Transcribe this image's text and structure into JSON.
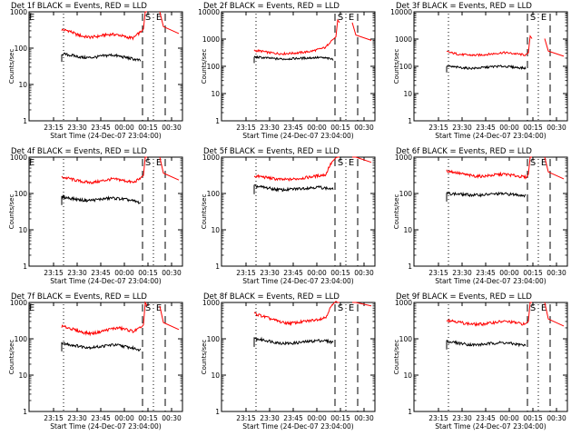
{
  "colors": {
    "background": "#ffffff",
    "events": "#000000",
    "lld": "#ff0000",
    "markers": "#000000"
  },
  "chart_data": [
    {
      "type": "line",
      "title": "Det 1f BLACK = Events, RED = LLD",
      "xlabel": "Start Time (24-Dec-07 23:04:00)",
      "ylabel": "Counts/sec",
      "yscale": "log",
      "ylim": [
        1,
        1000
      ],
      "xtick_labels": [
        "23:15",
        "23:30",
        "23:45",
        "00:00",
        "00:15",
        "00:30"
      ],
      "ytick_labels": [
        "1",
        "10",
        "100",
        "1000"
      ],
      "annotations": [
        "E",
        "S",
        "E"
      ],
      "grid": false,
      "series": [
        {
          "color": "#ff0000",
          "values": [
            320,
            300,
            240,
            210,
            200,
            210,
            230,
            240,
            230,
            200,
            190,
            280
          ]
        },
        {
          "color": "#000000",
          "values": [
            70,
            65,
            60,
            55,
            55,
            58,
            62,
            65,
            60,
            55,
            50,
            45
          ]
        }
      ]
    },
    {
      "type": "line",
      "title": "Det 2f BLACK = Events, RED = LLD",
      "xlabel": "Start Time (24-Dec-07 23:04:00)",
      "ylabel": "Counts/sec",
      "yscale": "log",
      "ylim": [
        1,
        10000
      ],
      "xtick_labels": [
        "23:15",
        "23:30",
        "23:45",
        "00:00",
        "00:15",
        "00:30"
      ],
      "ytick_labels": [
        "1",
        "10",
        "100",
        "1000",
        "10000"
      ],
      "annotations": [
        "S",
        "E"
      ],
      "grid": false,
      "series": [
        {
          "color": "#ff0000",
          "values": [
            380,
            360,
            320,
            300,
            290,
            300,
            310,
            330,
            360,
            420,
            500,
            1000
          ]
        },
        {
          "color": "#000000",
          "values": [
            220,
            210,
            200,
            190,
            185,
            190,
            195,
            200,
            205,
            210,
            200,
            180
          ]
        }
      ]
    },
    {
      "type": "line",
      "title": "Det 3f BLACK = Events, RED = LLD",
      "xlabel": "Start Time (24-Dec-07 23:04:00)",
      "ylabel": "Counts/sec",
      "yscale": "log",
      "ylim": [
        1,
        10000
      ],
      "xtick_labels": [
        "23:15",
        "23:30",
        "23:45",
        "00:00",
        "00:15",
        "00:30"
      ],
      "ytick_labels": [
        "1",
        "10",
        "100",
        "1000",
        "10000"
      ],
      "annotations": [
        "S",
        "E"
      ],
      "grid": false,
      "series": [
        {
          "color": "#ff0000",
          "values": [
            340,
            300,
            270,
            260,
            255,
            265,
            280,
            300,
            320,
            300,
            280,
            260
          ]
        },
        {
          "color": "#000000",
          "values": [
            100,
            95,
            90,
            85,
            85,
            90,
            95,
            100,
            100,
            95,
            90,
            85
          ]
        }
      ]
    },
    {
      "type": "line",
      "title": "Det 4f BLACK = Events, RED = LLD",
      "xlabel": "Start Time (24-Dec-07 23:04:00)",
      "ylabel": "Counts/sec",
      "yscale": "log",
      "ylim": [
        1,
        1000
      ],
      "xtick_labels": [
        "23:15",
        "23:30",
        "23:45",
        "00:00",
        "00:15",
        "00:30"
      ],
      "ytick_labels": [
        "1",
        "10",
        "100",
        "1000"
      ],
      "annotations": [
        "E",
        "S",
        "E"
      ],
      "grid": false,
      "series": [
        {
          "color": "#ff0000",
          "values": [
            280,
            260,
            230,
            210,
            200,
            210,
            230,
            250,
            240,
            220,
            200,
            260
          ]
        },
        {
          "color": "#000000",
          "values": [
            80,
            75,
            70,
            65,
            65,
            68,
            72,
            75,
            72,
            68,
            62,
            55
          ]
        }
      ]
    },
    {
      "type": "line",
      "title": "Det 5f BLACK = Events, RED = LLD",
      "xlabel": "Start Time (24-Dec-07 23:04:00)",
      "ylabel": "Counts/sec",
      "yscale": "log",
      "ylim": [
        1,
        1000
      ],
      "xtick_labels": [
        "23:15",
        "23:30",
        "23:45",
        "00:00",
        "00:15",
        "00:30"
      ],
      "ytick_labels": [
        "1",
        "10",
        "100",
        "1000"
      ],
      "annotations": [
        "S",
        "E"
      ],
      "grid": false,
      "series": [
        {
          "color": "#ff0000",
          "values": [
            300,
            290,
            270,
            250,
            240,
            245,
            255,
            270,
            290,
            310,
            330,
            800
          ]
        },
        {
          "color": "#000000",
          "values": [
            160,
            150,
            140,
            130,
            125,
            130,
            135,
            140,
            145,
            150,
            140,
            130
          ]
        }
      ]
    },
    {
      "type": "line",
      "title": "Det 6f BLACK = Events, RED = LLD",
      "xlabel": "Start Time (24-Dec-07 23:04:00)",
      "ylabel": "Counts/sec",
      "yscale": "log",
      "ylim": [
        1,
        1000
      ],
      "xtick_labels": [
        "23:15",
        "23:30",
        "23:45",
        "00:00",
        "00:15",
        "00:30"
      ],
      "ytick_labels": [
        "1",
        "10",
        "100",
        "1000"
      ],
      "annotations": [
        "S",
        "E"
      ],
      "grid": false,
      "series": [
        {
          "color": "#ff0000",
          "values": [
            420,
            390,
            350,
            320,
            300,
            300,
            310,
            330,
            340,
            320,
            300,
            280
          ]
        },
        {
          "color": "#000000",
          "values": [
            100,
            98,
            95,
            92,
            90,
            92,
            95,
            98,
            98,
            95,
            92,
            88
          ]
        }
      ]
    },
    {
      "type": "line",
      "title": "Det 7f BLACK = Events, RED = LLD",
      "xlabel": "Start Time (24-Dec-07 23:04:00)",
      "ylabel": "Counts/sec",
      "yscale": "log",
      "ylim": [
        1,
        1000
      ],
      "xtick_labels": [
        "23:15",
        "23:30",
        "23:45",
        "00:00",
        "00:15",
        "00:30"
      ],
      "ytick_labels": [
        "1",
        "10",
        "100",
        "1000"
      ],
      "annotations": [
        "E",
        "S",
        "E"
      ],
      "grid": false,
      "series": [
        {
          "color": "#ff0000",
          "values": [
            220,
            200,
            170,
            150,
            140,
            150,
            170,
            190,
            200,
            180,
            160,
            200
          ]
        },
        {
          "color": "#000000",
          "values": [
            75,
            70,
            65,
            60,
            58,
            60,
            64,
            68,
            66,
            60,
            55,
            50
          ]
        }
      ]
    },
    {
      "type": "line",
      "title": "Det 8f BLACK = Events, RED = LLD",
      "xlabel": "Start Time (24-Dec-07 23:04:00)",
      "ylabel": "Counts/sec",
      "yscale": "log",
      "ylim": [
        1,
        1000
      ],
      "xtick_labels": [
        "23:15",
        "23:30",
        "23:45",
        "00:00",
        "00:15",
        "00:30"
      ],
      "ytick_labels": [
        "1",
        "10",
        "100",
        "1000"
      ],
      "annotations": [
        "S",
        "E"
      ],
      "grid": false,
      "series": [
        {
          "color": "#ff0000",
          "values": [
            500,
            430,
            370,
            320,
            280,
            270,
            280,
            300,
            320,
            350,
            390,
            900
          ]
        },
        {
          "color": "#000000",
          "values": [
            100,
            95,
            88,
            80,
            75,
            75,
            78,
            82,
            86,
            90,
            88,
            80
          ]
        }
      ]
    },
    {
      "type": "line",
      "title": "Det 9f BLACK = Events, RED = LLD",
      "xlabel": "Start Time (24-Dec-07 23:04:00)",
      "ylabel": "Counts/sec",
      "yscale": "log",
      "ylim": [
        1,
        1000
      ],
      "xtick_labels": [
        "23:15",
        "23:30",
        "23:45",
        "00:00",
        "00:15",
        "00:30"
      ],
      "ytick_labels": [
        "1",
        "10",
        "100",
        "1000"
      ],
      "annotations": [
        "S",
        "E"
      ],
      "grid": false,
      "series": [
        {
          "color": "#ff0000",
          "values": [
            330,
            310,
            280,
            260,
            250,
            255,
            270,
            290,
            300,
            290,
            270,
            250
          ]
        },
        {
          "color": "#000000",
          "values": [
            85,
            80,
            75,
            70,
            68,
            70,
            74,
            78,
            78,
            74,
            70,
            65
          ]
        }
      ]
    }
  ]
}
